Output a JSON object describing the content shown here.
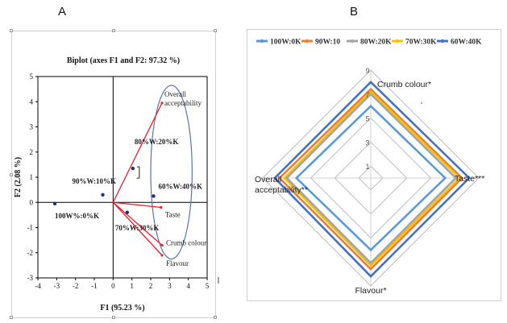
{
  "panels": {
    "a_label": "A",
    "b_label": "B"
  },
  "chart_data": [
    {
      "type": "scatter",
      "title": "Biplot (axes F1 and F2: 97.32 %)",
      "xlabel": "F1 (95.23 %)",
      "ylabel": "F2 (2.08 %)",
      "xlim": [
        -4,
        5
      ],
      "ylim": [
        -3,
        5
      ],
      "x_ticks": [
        "-4",
        "-3",
        "-2",
        "-1",
        "0",
        "1",
        "2",
        "3",
        "4",
        "5"
      ],
      "y_ticks": [
        "-3",
        "-2",
        "-1",
        "0",
        "1",
        "2",
        "3",
        "4",
        "5"
      ],
      "observations": [
        {
          "label": "100W%:0%K",
          "x": -3.1,
          "y": -0.05
        },
        {
          "label": "90%W:10%K",
          "x": -0.55,
          "y": 0.3
        },
        {
          "label": "80%W:20%K",
          "x": 1.05,
          "y": 1.35
        },
        {
          "label": "70%W:30%K",
          "x": 0.75,
          "y": -0.4
        },
        {
          "label": "60%W:40%K",
          "x": 2.15,
          "y": 0.25
        }
      ],
      "variables": [
        {
          "label": "Overall acceptability",
          "x": 2.6,
          "y": 3.95
        },
        {
          "label": "Taste",
          "x": 2.55,
          "y": -0.2
        },
        {
          "label": "Crumb colour",
          "x": 2.6,
          "y": -1.7
        },
        {
          "label": "Flavour",
          "x": 2.6,
          "y": -2.1
        }
      ],
      "ellipse": {
        "cx": 3.1,
        "cy": 1.2,
        "rx": 1.1,
        "ry": 3.45
      },
      "colors": {
        "points": "#1f2f7a",
        "vectors": "#e8202a",
        "ellipse": "#5577aa"
      }
    },
    {
      "type": "radar",
      "axes": [
        "Crumb colour*",
        "Taste***",
        "Flavour*",
        "Overall acceptability**"
      ],
      "ring_labels": [
        "9",
        "7",
        "5",
        "3",
        "1"
      ],
      "range": [
        0,
        9
      ],
      "series": [
        {
          "name": "100W:0K",
          "color": "#5b9bd5",
          "values": [
            6.0,
            6.2,
            6.0,
            6.2
          ]
        },
        {
          "name": "90W:10",
          "color": "#ed7d31",
          "values": [
            7.4,
            7.6,
            7.6,
            7.6
          ]
        },
        {
          "name": "80W:20K",
          "color": "#a5a5a5",
          "values": [
            7.0,
            7.1,
            7.1,
            7.0
          ]
        },
        {
          "name": "70W:30K",
          "color": "#ffc000",
          "values": [
            7.2,
            7.4,
            7.3,
            7.2
          ]
        },
        {
          "name": "60W:40K",
          "color": "#4472c4",
          "values": [
            8.0,
            8.2,
            8.2,
            8.0
          ]
        }
      ]
    }
  ]
}
